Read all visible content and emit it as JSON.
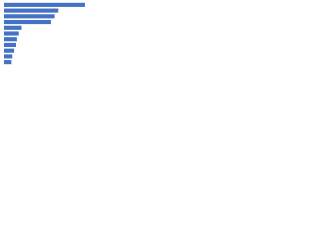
{
  "chart_data": {
    "type": "bar",
    "orientation": "horizontal",
    "categories": [
      null,
      null,
      null,
      null,
      null,
      null,
      null,
      null,
      null,
      null,
      null
    ],
    "values": [
      88,
      59,
      55,
      51,
      19,
      16,
      14,
      13,
      11,
      9,
      8
    ],
    "color": "#4472c4",
    "xlim": [
      0,
      100
    ]
  }
}
